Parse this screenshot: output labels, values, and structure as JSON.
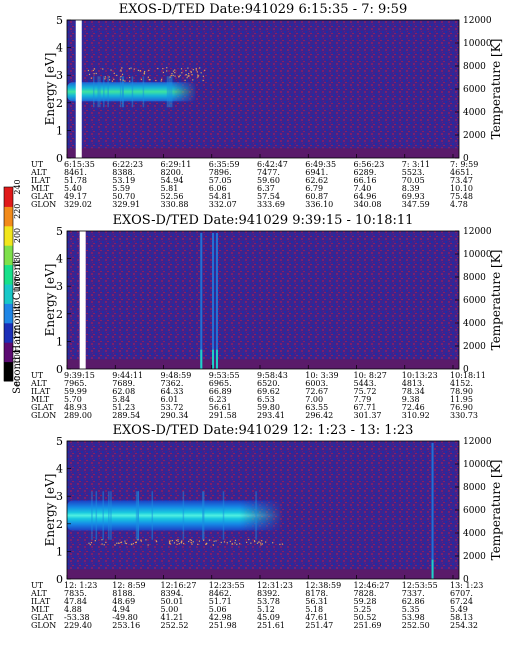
{
  "colorbar": {
    "label": "Second Harmonic Current",
    "ticks": [
      "80",
      "100",
      "120",
      "140",
      "160",
      "180",
      "200",
      "220",
      "240"
    ],
    "colors": [
      "#000000",
      "#5b0a72",
      "#1b2fb8",
      "#1f86e6",
      "#18c8c8",
      "#17e08a",
      "#7ee04a",
      "#f2e61c",
      "#f28b1a",
      "#e01a1a"
    ]
  },
  "chart_data": [
    {
      "type": "heatmap",
      "title": "EXOS-D/TED   Date:941029  6:15:35 - 7: 9:59",
      "ylabel": "Energy [eV]",
      "y2label": "Temperature [K]",
      "ylim": [
        0,
        5
      ],
      "y2lim": [
        0,
        12000
      ],
      "yticks": [
        "0",
        "1",
        "2",
        "3",
        "4",
        "5"
      ],
      "y2ticks": [
        "0",
        "2000",
        "4000",
        "6000",
        "8000",
        "10000",
        "12000"
      ],
      "band": {
        "start": 0.0,
        "end": 0.33,
        "center_ev": 2.4,
        "halfwidth_ev": 0.35,
        "level": "green"
      },
      "data_gaps": [
        0.03
      ],
      "spikes": [],
      "temperature_points": {
        "start": 0.05,
        "end": 0.35,
        "band_ev": [
          2.8,
          3.3
        ]
      },
      "orbit_table": {
        "row_labels": [
          "UT",
          "ALT",
          "ILAT",
          "MLT",
          "GLAT",
          "GLON"
        ],
        "columns": [
          [
            "6:15:35",
            "8461.",
            "51.78",
            "5.40",
            "49.17",
            "329.02"
          ],
          [
            "6:22:23",
            "8388.",
            "53.19",
            "5.59",
            "50.70",
            "329.91"
          ],
          [
            "6:29:11",
            "8200.",
            "54.94",
            "5.81",
            "52.56",
            "330.88"
          ],
          [
            "6:35:59",
            "7896.",
            "57.05",
            "6.06",
            "54.81",
            "332.07"
          ],
          [
            "6:42:47",
            "7477.",
            "59.60",
            "6.37",
            "57.54",
            "333.69"
          ],
          [
            "6:49:35",
            "6941.",
            "62.62",
            "6.79",
            "60.87",
            "336.10"
          ],
          [
            "6:56:23",
            "6289.",
            "66.16",
            "7.40",
            "64.96",
            "340.08"
          ],
          [
            "7: 3:11",
            "5523.",
            "70.05",
            "8.39",
            "69.93",
            "347.59"
          ],
          [
            "7: 9:59",
            "4651.",
            "73.47",
            "10.10",
            "75.48",
            "4.78"
          ]
        ]
      }
    },
    {
      "type": "heatmap",
      "title": "EXOS-D/TED   Date:941029  9:39:15 - 10:18:11",
      "ylabel": "Energy [eV]",
      "y2label": "Temperature [K]",
      "ylim": [
        0,
        5
      ],
      "y2lim": [
        0,
        12000
      ],
      "yticks": [
        "0",
        "1",
        "2",
        "3",
        "4",
        "5"
      ],
      "y2ticks": [
        "0",
        "2000",
        "4000",
        "6000",
        "8000",
        "10000",
        "12000"
      ],
      "band": null,
      "data_gaps": [
        0.04
      ],
      "spikes": [
        0.34,
        0.37,
        0.38
      ],
      "temperature_points": null,
      "orbit_table": {
        "row_labels": [
          "UT",
          "ALT",
          "ILAT",
          "MLT",
          "GLAT",
          "GLON"
        ],
        "columns": [
          [
            "9:39:15",
            "7965.",
            "59.99",
            "5.70",
            "48.93",
            "289.00"
          ],
          [
            "9:44:11",
            "7689.",
            "62.08",
            "5.84",
            "51.23",
            "289.54"
          ],
          [
            "9:48:59",
            "7362.",
            "64.33",
            "6.01",
            "53.72",
            "290.34"
          ],
          [
            "9:53:55",
            "6965.",
            "66.89",
            "6.23",
            "56.61",
            "291.58"
          ],
          [
            "9:58:43",
            "6520.",
            "69.62",
            "6.53",
            "59.80",
            "293.41"
          ],
          [
            "10: 3:39",
            "6003.",
            "72.67",
            "7.00",
            "63.55",
            "296.42"
          ],
          [
            "10: 8:27",
            "5443.",
            "75.72",
            "7.79",
            "67.71",
            "301.37"
          ],
          [
            "10:13:23",
            "4813.",
            "78.34",
            "9.38",
            "72.46",
            "310.92"
          ],
          [
            "10:18:11",
            "4152.",
            "78.90",
            "11.95",
            "76.90",
            "330.73"
          ]
        ]
      }
    },
    {
      "type": "heatmap",
      "title": "EXOS-D/TED   Date:941029  12: 1:23 - 13: 1:23",
      "ylabel": "Energy [eV]",
      "y2label": "Temperature [K]",
      "ylim": [
        0,
        5
      ],
      "y2lim": [
        0,
        12000
      ],
      "yticks": [
        "0",
        "1",
        "2",
        "3",
        "4",
        "5"
      ],
      "y2ticks": [
        "0",
        "2000",
        "4000",
        "6000",
        "8000",
        "10000",
        "12000"
      ],
      "band": {
        "start": 0.0,
        "end": 0.55,
        "center_ev": 2.3,
        "halfwidth_ev": 0.55,
        "level": "cyan"
      },
      "data_gaps": [],
      "spikes": [
        0.93
      ],
      "temperature_points": {
        "start": 0.05,
        "end": 0.55,
        "band_ev": [
          1.25,
          1.45
        ]
      },
      "orbit_table": {
        "row_labels": [
          "UT",
          "ALT",
          "ILAT",
          "MLT",
          "GLAT",
          "GLON"
        ],
        "columns": [
          [
            "12: 1:23",
            "7835.",
            "47.84",
            "4.88",
            "-53.38",
            "229.40"
          ],
          [
            "12: 8:59",
            "8188.",
            "48.69",
            "4.94",
            "-49.80",
            "253.16"
          ],
          [
            "12:16:27",
            "8394.",
            "50.01",
            "5.00",
            "41.21",
            "252.52"
          ],
          [
            "12:23:55",
            "8462.",
            "51.71",
            "5.06",
            "42.98",
            "251.98"
          ],
          [
            "12:31:23",
            "8392.",
            "53.78",
            "5.12",
            "45.09",
            "251.61"
          ],
          [
            "12:38:59",
            "8178.",
            "56.31",
            "5.18",
            "47.61",
            "251.47"
          ],
          [
            "12:46:27",
            "7828.",
            "59.28",
            "5.25",
            "50.52",
            "251.69"
          ],
          [
            "12:53:55",
            "7337.",
            "62.86",
            "5.35",
            "53.98",
            "252.50"
          ],
          [
            "13: 1:23",
            "6707.",
            "67.24",
            "5.49",
            "58.13",
            "254.32"
          ]
        ]
      }
    }
  ]
}
